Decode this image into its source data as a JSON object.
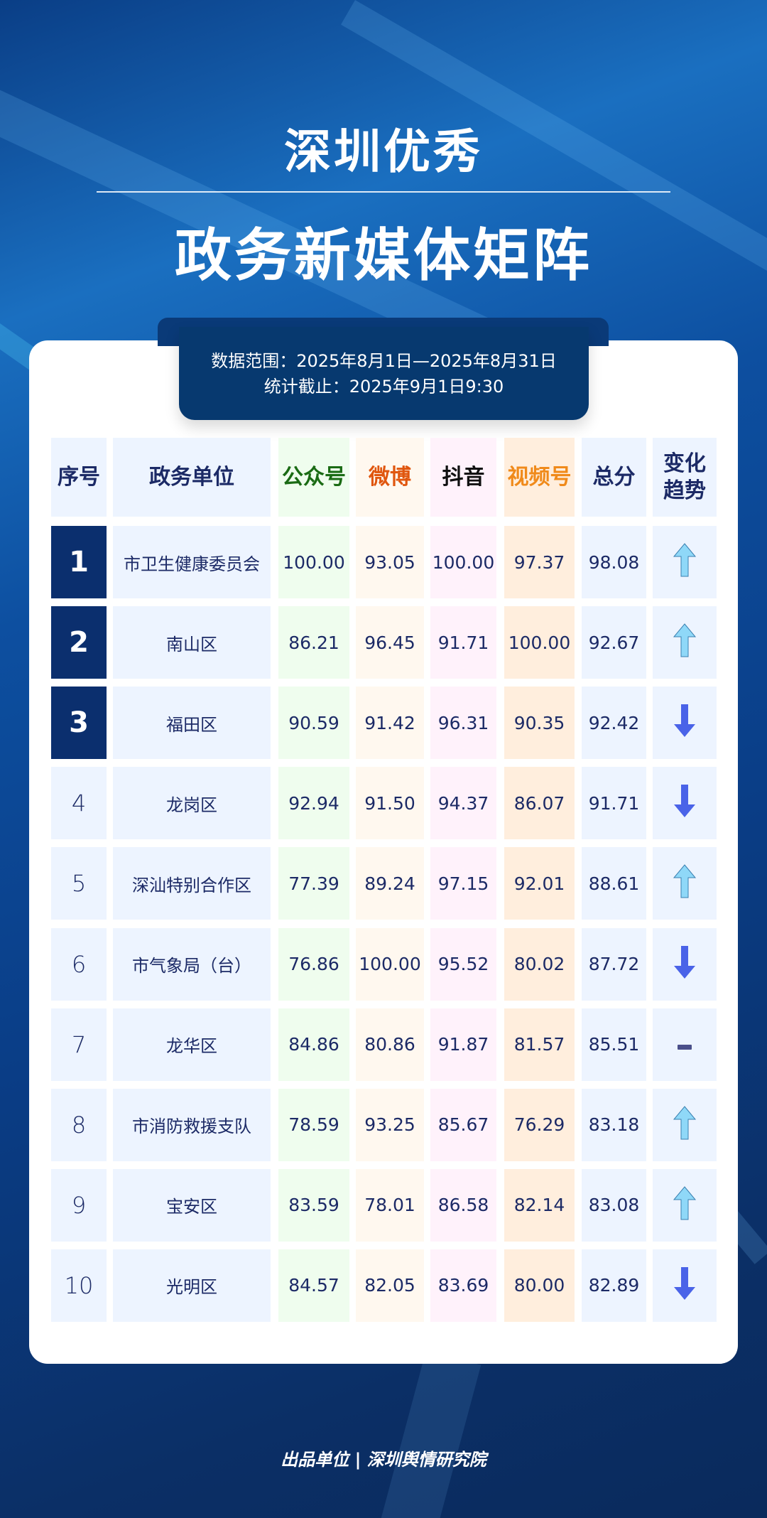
{
  "header": {
    "title_line1": "深圳优秀",
    "title_line2": "政务新媒体矩阵"
  },
  "banner": {
    "data_range": "数据范围：2025年8月1日—2025年8月31日",
    "cutoff": "统计截止：2025年9月1日9:30"
  },
  "table": {
    "headers": [
      "序号",
      "政务单位",
      "公众号",
      "微博",
      "抖音",
      "视频号",
      "总分",
      "变化趋势"
    ],
    "header_colors": [
      "#1c2a66",
      "#1c2a66",
      "#1a6b14",
      "#e0560e",
      "#111111",
      "#f08a1a",
      "#1c2a66",
      "#1c2a66"
    ],
    "rows": [
      {
        "rank": "1",
        "unit": "市卫生健康委员会",
        "gzh": "100.00",
        "wb": "93.05",
        "dy": "100.00",
        "sph": "97.37",
        "total": "98.08",
        "trend": "up"
      },
      {
        "rank": "2",
        "unit": "南山区",
        "gzh": "86.21",
        "wb": "96.45",
        "dy": "91.71",
        "sph": "100.00",
        "total": "92.67",
        "trend": "up"
      },
      {
        "rank": "3",
        "unit": "福田区",
        "gzh": "90.59",
        "wb": "91.42",
        "dy": "96.31",
        "sph": "90.35",
        "total": "92.42",
        "trend": "down"
      },
      {
        "rank": "4",
        "unit": "龙岗区",
        "gzh": "92.94",
        "wb": "91.50",
        "dy": "94.37",
        "sph": "86.07",
        "total": "91.71",
        "trend": "down"
      },
      {
        "rank": "5",
        "unit": "深汕特别合作区",
        "gzh": "77.39",
        "wb": "89.24",
        "dy": "97.15",
        "sph": "92.01",
        "total": "88.61",
        "trend": "up"
      },
      {
        "rank": "6",
        "unit": "市气象局（台）",
        "gzh": "76.86",
        "wb": "100.00",
        "dy": "95.52",
        "sph": "80.02",
        "total": "87.72",
        "trend": "down"
      },
      {
        "rank": "7",
        "unit": "龙华区",
        "gzh": "84.86",
        "wb": "80.86",
        "dy": "91.87",
        "sph": "81.57",
        "total": "85.51",
        "trend": "flat"
      },
      {
        "rank": "8",
        "unit": "市消防救援支队",
        "gzh": "78.59",
        "wb": "93.25",
        "dy": "85.67",
        "sph": "76.29",
        "total": "83.18",
        "trend": "up"
      },
      {
        "rank": "9",
        "unit": "宝安区",
        "gzh": "83.59",
        "wb": "78.01",
        "dy": "86.58",
        "sph": "82.14",
        "total": "83.08",
        "trend": "up"
      },
      {
        "rank": "10",
        "unit": "光明区",
        "gzh": "84.57",
        "wb": "82.05",
        "dy": "83.69",
        "sph": "80.00",
        "total": "82.89",
        "trend": "down"
      }
    ]
  },
  "footer": {
    "producer": "出品单位 | 深圳舆情研究院"
  },
  "colors": {
    "up": "#8fd8f8",
    "down": "#4a63e8",
    "flat": "#4a4f8a",
    "rank_top": "#0b2f6e"
  }
}
